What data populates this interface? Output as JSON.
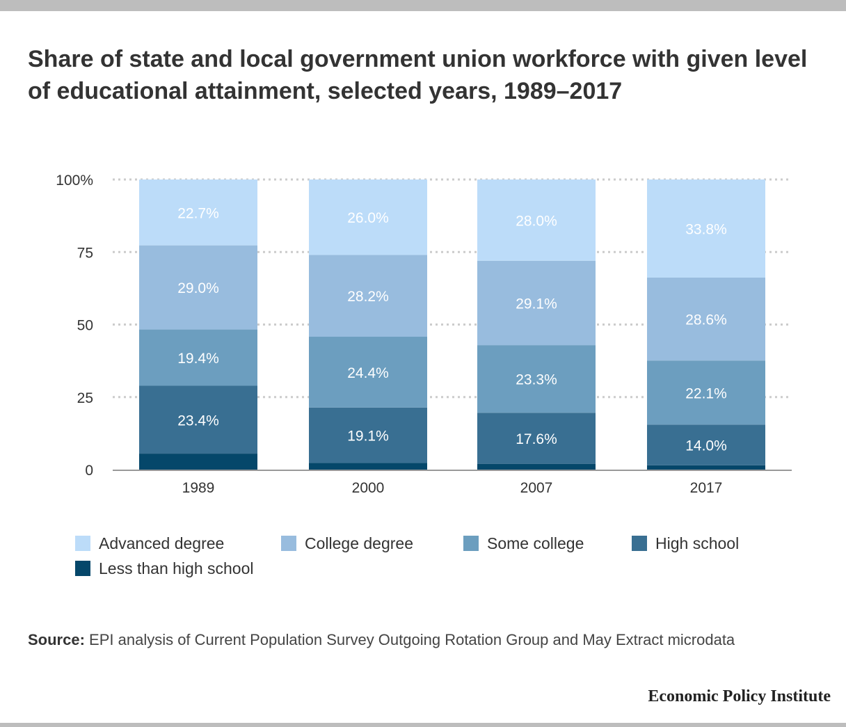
{
  "title": "Share of state and local government union workforce with given level of educational attainment, selected years, 1989–2017",
  "source_label": "Source:",
  "source_text": " EPI analysis of Current Population Survey Outgoing Rotation Group and May Extract microdata",
  "brand": "Economic Policy Institute",
  "colors": {
    "Advanced degree": "#bcdcf9",
    "College degree": "#98bcde",
    "Some college": "#6c9ebf",
    "High school": "#396f92",
    "Less than high school": "#05476a"
  },
  "chart_data": {
    "type": "bar",
    "stacked": true,
    "categories": [
      "1989",
      "2000",
      "2007",
      "2017"
    ],
    "series": [
      {
        "name": "Less than high school",
        "values": [
          5.5,
          2.3,
          2.0,
          1.5
        ],
        "labels": [
          "",
          "",
          "",
          ""
        ]
      },
      {
        "name": "High school",
        "values": [
          23.4,
          19.1,
          17.6,
          14.0
        ],
        "labels": [
          "23.4%",
          "19.1%",
          "17.6%",
          "14.0%"
        ]
      },
      {
        "name": "Some college",
        "values": [
          19.4,
          24.4,
          23.3,
          22.1
        ],
        "labels": [
          "19.4%",
          "24.4%",
          "23.3%",
          "22.1%"
        ]
      },
      {
        "name": "College degree",
        "values": [
          29.0,
          28.2,
          29.1,
          28.6
        ],
        "labels": [
          "29.0%",
          "28.2%",
          "29.1%",
          "28.6%"
        ]
      },
      {
        "name": "Advanced degree",
        "values": [
          22.7,
          26.0,
          28.0,
          33.8
        ],
        "labels": [
          "22.7%",
          "26.0%",
          "28.0%",
          "33.8%"
        ]
      }
    ],
    "y_ticks": [
      0,
      25,
      50,
      75,
      100
    ],
    "y_tick_labels": [
      "0",
      "25",
      "50",
      "75",
      "100%"
    ],
    "ylim": [
      0,
      100
    ],
    "grid": true,
    "legend_order": [
      "Advanced degree",
      "College degree",
      "Some college",
      "High school",
      "Less than high school"
    ],
    "legend_position": "bottom"
  }
}
